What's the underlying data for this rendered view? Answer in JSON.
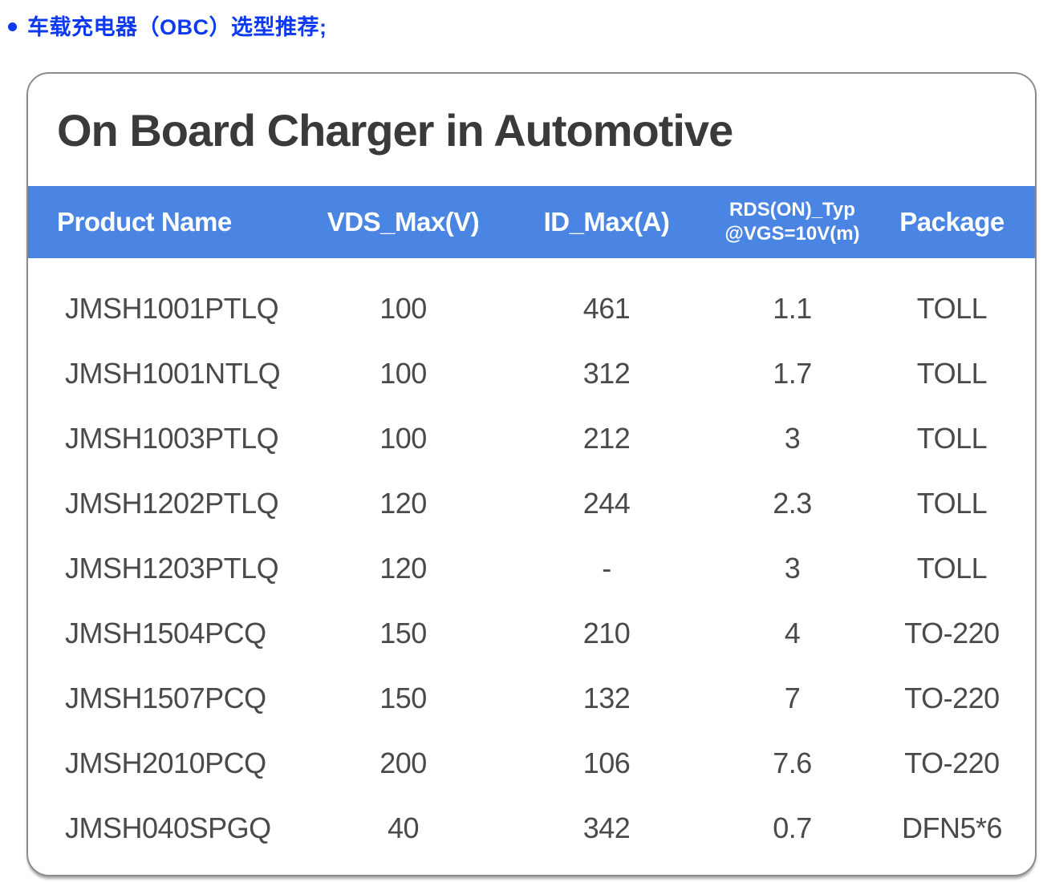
{
  "heading": {
    "bullet_icon": "circle-dot",
    "text": "车载充电器（OBC）选型推荐;"
  },
  "card": {
    "title": "On Board Charger in Automotive",
    "table": {
      "headers": [
        "Product Name",
        "VDS_Max(V)",
        "ID_Max(A)",
        "RDS(ON)_Typ\n@VGS=10V(m)",
        "Package"
      ],
      "rows": [
        [
          "JMSH1001PTLQ",
          "100",
          "461",
          "1.1",
          "TOLL"
        ],
        [
          "JMSH1001NTLQ",
          "100",
          "312",
          "1.7",
          "TOLL"
        ],
        [
          "JMSH1003PTLQ",
          "100",
          "212",
          "3",
          "TOLL"
        ],
        [
          "JMSH1202PTLQ",
          "120",
          "244",
          "2.3",
          "TOLL"
        ],
        [
          "JMSH1203PTLQ",
          "120",
          "-",
          "3",
          "TOLL"
        ],
        [
          "JMSH1504PCQ",
          "150",
          "210",
          "4",
          "TO-220"
        ],
        [
          "JMSH1507PCQ",
          "150",
          "132",
          "7",
          "TO-220"
        ],
        [
          "JMSH2010PCQ",
          "200",
          "106",
          "7.6",
          "TO-220"
        ],
        [
          "JMSH040SPGQ",
          "40",
          "342",
          "0.7",
          "DFN5*6"
        ]
      ]
    }
  },
  "colors": {
    "heading_blue": "#0d3af0",
    "header_bar_blue": "#4a85e3",
    "header_text": "#ffffff",
    "title_text": "#3a3a3a",
    "body_text": "#4a4a4a",
    "card_border": "#8c8c8c",
    "background": "#ffffff"
  }
}
